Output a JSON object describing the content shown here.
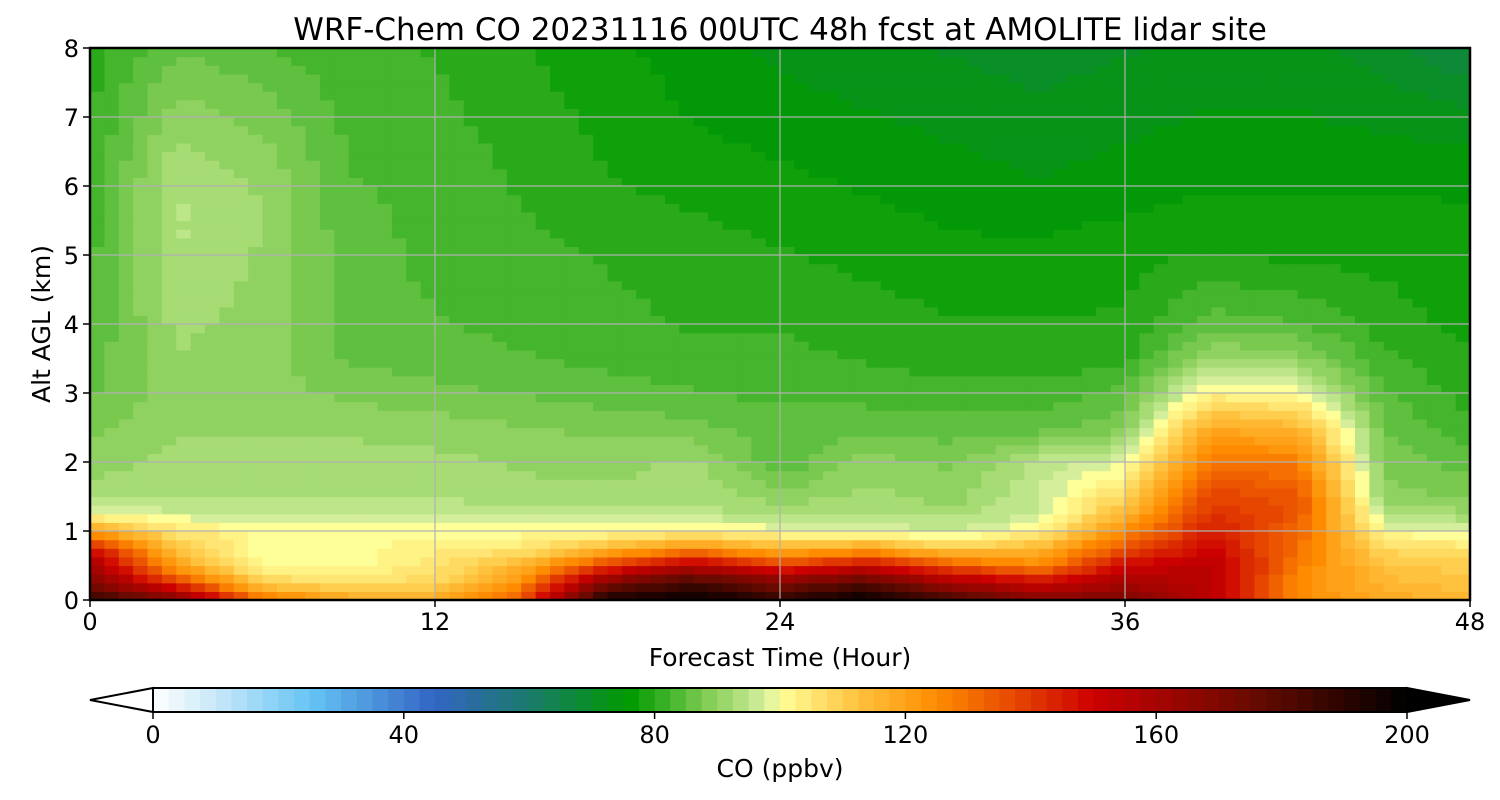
{
  "chart_data": {
    "type": "heatmap",
    "title": "WRF-Chem CO  20231116 00UTC 48h fcst at AMOLITE lidar site",
    "xlabel": "Forecast Time (Hour)",
    "ylabel": "Alt AGL (km)",
    "xlim": [
      0,
      48
    ],
    "ylim": [
      0,
      8
    ],
    "xticks": [
      "0",
      "12",
      "24",
      "36",
      "48"
    ],
    "yticks": [
      "0",
      "1",
      "2",
      "3",
      "4",
      "5",
      "6",
      "7",
      "8"
    ],
    "grid": true,
    "x": [
      0,
      3,
      6,
      9,
      12,
      15,
      18,
      21,
      24,
      27,
      30,
      33,
      36,
      39,
      42,
      45,
      48
    ],
    "y": [
      0,
      0.25,
      0.5,
      0.75,
      1,
      1.25,
      1.5,
      2,
      2.5,
      3,
      3.5,
      4,
      5,
      6,
      7,
      8
    ],
    "z": [
      [
        190,
        170,
        130,
        120,
        118,
        135,
        195,
        200,
        190,
        200,
        185,
        170,
        170,
        155,
        125,
        118,
        115
      ],
      [
        170,
        140,
        110,
        105,
        108,
        125,
        170,
        185,
        170,
        180,
        160,
        150,
        160,
        155,
        125,
        115,
        112
      ],
      [
        160,
        120,
        100,
        100,
        105,
        115,
        140,
        155,
        140,
        150,
        135,
        125,
        150,
        155,
        128,
        112,
        110
      ],
      [
        148,
        112,
        100,
        100,
        103,
        105,
        115,
        125,
        115,
        120,
        110,
        115,
        135,
        150,
        130,
        108,
        105
      ],
      [
        120,
        105,
        100,
        100,
        100,
        100,
        100,
        102,
        100,
        98,
        96,
        102,
        125,
        145,
        132,
        100,
        98
      ],
      [
        100,
        97,
        96,
        96,
        97,
        96,
        95,
        95,
        93,
        94,
        93,
        96,
        115,
        142,
        135,
        95,
        92
      ],
      [
        93,
        93,
        93,
        93,
        93,
        92,
        92,
        93,
        90,
        92,
        90,
        96,
        108,
        138,
        135,
        90,
        88
      ],
      [
        90,
        92,
        93,
        92,
        92,
        91,
        90,
        92,
        84,
        90,
        88,
        95,
        98,
        130,
        128,
        88,
        85
      ],
      [
        88,
        91,
        91,
        91,
        90,
        89,
        88,
        87,
        85,
        85,
        85,
        85,
        88,
        118,
        115,
        86,
        82
      ],
      [
        86,
        90,
        90,
        88,
        87,
        86,
        85,
        84,
        83,
        83,
        82,
        82,
        85,
        102,
        100,
        84,
        80
      ],
      [
        85,
        91,
        90,
        86,
        85,
        84,
        83,
        82,
        82,
        81,
        80,
        80,
        80,
        92,
        90,
        82,
        79
      ],
      [
        84,
        92,
        90,
        85,
        84,
        83,
        82,
        81,
        81,
        80,
        79,
        79,
        79,
        85,
        84,
        80,
        78
      ],
      [
        83,
        94,
        91,
        85,
        83,
        82,
        81,
        80,
        79,
        78,
        77,
        77,
        78,
        79,
        78,
        78,
        77
      ],
      [
        82,
        94,
        91,
        84,
        83,
        81,
        79,
        78,
        77,
        76,
        75,
        74,
        75,
        76,
        76,
        76,
        76
      ],
      [
        81,
        90,
        88,
        83,
        82,
        80,
        78,
        76,
        75,
        74,
        73,
        72,
        73,
        74,
        74,
        73,
        72
      ],
      [
        80,
        86,
        84,
        82,
        81,
        79,
        77,
        75,
        73,
        72,
        71,
        70,
        71,
        72,
        72,
        70,
        66
      ]
    ],
    "colorbar": {
      "label": "CO  (ppbv)",
      "range": [
        0,
        200
      ],
      "ticks": [
        "0",
        "40",
        "80",
        "120",
        "160",
        "200"
      ],
      "extend": "both",
      "stops": [
        {
          "v": 0,
          "c": "#ffffff"
        },
        {
          "v": 10,
          "c": "#c8e8f8"
        },
        {
          "v": 25,
          "c": "#66c4f4"
        },
        {
          "v": 45,
          "c": "#3364c4"
        },
        {
          "v": 60,
          "c": "#1a7a6a"
        },
        {
          "v": 76,
          "c": "#009a00"
        },
        {
          "v": 88,
          "c": "#7ecb52"
        },
        {
          "v": 98,
          "c": "#d8f0a0"
        },
        {
          "v": 100,
          "c": "#ffff99"
        },
        {
          "v": 112,
          "c": "#ffc440"
        },
        {
          "v": 125,
          "c": "#ff8c00"
        },
        {
          "v": 150,
          "c": "#cc0000"
        },
        {
          "v": 175,
          "c": "#6a0a00"
        },
        {
          "v": 200,
          "c": "#000000"
        }
      ]
    }
  }
}
